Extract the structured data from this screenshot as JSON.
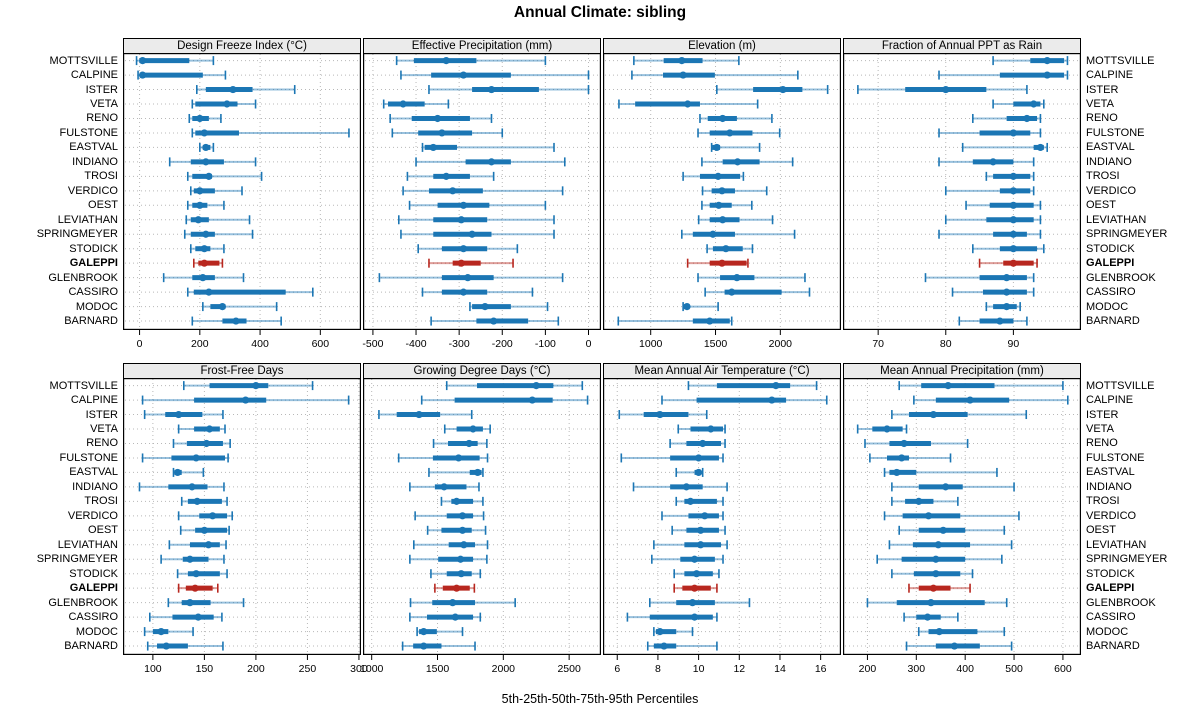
{
  "title": "Annual Climate: sibling",
  "caption": "5th-25th-50th-75th-95th Percentiles",
  "colors": {
    "blue": "#1b76b4",
    "red": "#b8271f",
    "grid": "#b8b8b8",
    "header_bg": "#ebebeb",
    "border": "#000000"
  },
  "stations": [
    "MOTTSVILLE",
    "CALPINE",
    "ISTER",
    "VETA",
    "RENO",
    "FULSTONE",
    "EASTVAL",
    "INDIANO",
    "TROSI",
    "VERDICO",
    "OEST",
    "LEVIATHAN",
    "SPRINGMEYER",
    "STODICK",
    "GALEPPI",
    "GLENBROOK",
    "CASSIRO",
    "MODOC",
    "BARNARD"
  ],
  "highlight_station": "GALEPPI",
  "chart_data": {
    "type": "percentile-dotplot-trellis",
    "percentiles": [
      5,
      25,
      50,
      75,
      95
    ],
    "layout": "2 rows x 4 columns, station labels on both sides, GALEPPI highlighted red",
    "panels": [
      {
        "title": "Design Freeze Index (°C)",
        "xlim": [
          -55,
          735
        ],
        "ticks": [
          0,
          200,
          400,
          600
        ],
        "values": [
          [
            -10,
            0,
            10,
            165,
            245
          ],
          [
            -5,
            0,
            10,
            210,
            285
          ],
          [
            190,
            220,
            310,
            375,
            515
          ],
          [
            175,
            185,
            290,
            325,
            385
          ],
          [
            165,
            175,
            200,
            230,
            270
          ],
          [
            175,
            185,
            215,
            330,
            695
          ],
          [
            200,
            210,
            220,
            235,
            245
          ],
          [
            100,
            170,
            220,
            280,
            385
          ],
          [
            160,
            175,
            230,
            240,
            405
          ],
          [
            170,
            180,
            200,
            250,
            340
          ],
          [
            160,
            175,
            200,
            225,
            280
          ],
          [
            155,
            170,
            195,
            230,
            365
          ],
          [
            150,
            170,
            220,
            250,
            375
          ],
          [
            170,
            185,
            215,
            235,
            280
          ],
          [
            180,
            195,
            215,
            265,
            275
          ],
          [
            80,
            175,
            210,
            250,
            345
          ],
          [
            160,
            180,
            230,
            485,
            575
          ],
          [
            210,
            235,
            275,
            285,
            455
          ],
          [
            175,
            275,
            320,
            355,
            470
          ]
        ]
      },
      {
        "title": "Effective Precipitation (mm)",
        "xlim": [
          -523,
          29
        ],
        "ticks": [
          -500,
          -400,
          -300,
          -200,
          -100,
          0
        ],
        "values": [
          [
            -445,
            -405,
            -330,
            -260,
            -100
          ],
          [
            -435,
            -365,
            -290,
            -180,
            0
          ],
          [
            -370,
            -270,
            -225,
            -115,
            0
          ],
          [
            -475,
            -465,
            -430,
            -380,
            -325
          ],
          [
            -460,
            -410,
            -350,
            -275,
            -225
          ],
          [
            -455,
            -395,
            -340,
            -270,
            -200
          ],
          [
            -385,
            -380,
            -360,
            -305,
            -80
          ],
          [
            -400,
            -285,
            -225,
            -180,
            -55
          ],
          [
            -420,
            -360,
            -330,
            -275,
            -220
          ],
          [
            -430,
            -370,
            -315,
            -245,
            -60
          ],
          [
            -415,
            -350,
            -290,
            -230,
            -100
          ],
          [
            -440,
            -360,
            -295,
            -235,
            -80
          ],
          [
            -435,
            -360,
            -270,
            -225,
            -80
          ],
          [
            -395,
            -340,
            -290,
            -235,
            -165
          ],
          [
            -370,
            -315,
            -295,
            -250,
            -175
          ],
          [
            -485,
            -340,
            -280,
            -220,
            -60
          ],
          [
            -385,
            -340,
            -290,
            -235,
            -130
          ],
          [
            -275,
            -270,
            -240,
            -180,
            -95
          ],
          [
            -365,
            -260,
            -220,
            -140,
            -70
          ]
        ]
      },
      {
        "title": "Elevation (m)",
        "xlim": [
          632,
          2468
        ],
        "ticks": [
          1000,
          1500,
          2000
        ],
        "values": [
          [
            870,
            1100,
            1240,
            1400,
            1680
          ],
          [
            855,
            1095,
            1250,
            1495,
            2135
          ],
          [
            1510,
            1790,
            2020,
            2170,
            2365
          ],
          [
            755,
            880,
            1285,
            1380,
            1825
          ],
          [
            1380,
            1440,
            1555,
            1665,
            1935
          ],
          [
            1365,
            1455,
            1610,
            1785,
            1995
          ],
          [
            1470,
            1475,
            1510,
            1535,
            1840
          ],
          [
            1395,
            1555,
            1670,
            1840,
            2095
          ],
          [
            1250,
            1380,
            1520,
            1690,
            1715
          ],
          [
            1400,
            1470,
            1550,
            1650,
            1895
          ],
          [
            1395,
            1455,
            1525,
            1625,
            1780
          ],
          [
            1370,
            1455,
            1555,
            1685,
            1940
          ],
          [
            1240,
            1325,
            1480,
            1650,
            2110
          ],
          [
            1435,
            1480,
            1580,
            1710,
            1785
          ],
          [
            1285,
            1455,
            1550,
            1740,
            1750
          ],
          [
            1365,
            1535,
            1665,
            1800,
            2190
          ],
          [
            1420,
            1570,
            1625,
            2010,
            2225
          ],
          [
            1250,
            1255,
            1280,
            1300,
            1520
          ],
          [
            750,
            1325,
            1455,
            1610,
            1625
          ]
        ]
      },
      {
        "title": "Fraction of Annual PPT as Rain",
        "xlim": [
          64.8,
          100
        ],
        "ticks": [
          70,
          80,
          90
        ],
        "values": [
          [
            87,
            92.5,
            95,
            97.5,
            98
          ],
          [
            79,
            88,
            95,
            97.5,
            98
          ],
          [
            67,
            74,
            80,
            86,
            92
          ],
          [
            87,
            90,
            93,
            94,
            94.5
          ],
          [
            84,
            89,
            92,
            93.5,
            94
          ],
          [
            79,
            85,
            90,
            92.5,
            94
          ],
          [
            82.5,
            93,
            94,
            94.5,
            95
          ],
          [
            79,
            84,
            87,
            90,
            93
          ],
          [
            86,
            87,
            90,
            92.5,
            93
          ],
          [
            80,
            88,
            90,
            92.5,
            93
          ],
          [
            83,
            86.5,
            90,
            93,
            94
          ],
          [
            80,
            86,
            90,
            93,
            94
          ],
          [
            79,
            87,
            90,
            92,
            94
          ],
          [
            84,
            88,
            90,
            93.5,
            94.5
          ],
          [
            85,
            88.5,
            90,
            93,
            93.5
          ],
          [
            77,
            85,
            89,
            92,
            93
          ],
          [
            81,
            85.5,
            89,
            92,
            93
          ],
          [
            86,
            87,
            89,
            90.5,
            91
          ],
          [
            82,
            85,
            88,
            90,
            92
          ]
        ]
      },
      {
        "title": "Frost-Free Days",
        "xlim": [
          71,
          302
        ],
        "ticks": [
          100,
          150,
          200,
          250,
          300
        ],
        "values": [
          [
            130,
            155,
            200,
            212,
            255
          ],
          [
            90,
            140,
            190,
            210,
            290
          ],
          [
            92,
            112,
            125,
            148,
            168
          ],
          [
            125,
            140,
            155,
            165,
            170
          ],
          [
            120,
            133,
            152,
            168,
            175
          ],
          [
            90,
            118,
            142,
            170,
            173
          ],
          [
            120,
            121,
            124,
            128,
            149
          ],
          [
            87,
            115,
            138,
            153,
            169
          ],
          [
            128,
            134,
            143,
            167,
            172
          ],
          [
            125,
            145,
            158,
            172,
            177
          ],
          [
            127,
            141,
            150,
            172,
            174
          ],
          [
            116,
            136,
            154,
            165,
            171
          ],
          [
            108,
            129,
            136,
            154,
            169
          ],
          [
            124,
            134,
            142,
            165,
            172
          ],
          [
            125,
            132,
            141,
            158,
            163
          ],
          [
            115,
            128,
            136,
            156,
            188
          ],
          [
            97,
            119,
            144,
            159,
            167
          ],
          [
            92,
            100,
            108,
            115,
            139
          ],
          [
            95,
            104,
            113,
            134,
            168
          ]
        ]
      },
      {
        "title": "Growing Degree Days (°C)",
        "xlim": [
          934,
          2742
        ],
        "ticks": [
          1000,
          1500,
          2000,
          2500
        ],
        "values": [
          [
            1570,
            1800,
            2250,
            2380,
            2600
          ],
          [
            1380,
            1630,
            2220,
            2375,
            2640
          ],
          [
            1055,
            1190,
            1360,
            1520,
            1760
          ],
          [
            1555,
            1645,
            1770,
            1845,
            1900
          ],
          [
            1470,
            1580,
            1740,
            1805,
            1875
          ],
          [
            1205,
            1465,
            1660,
            1820,
            1880
          ],
          [
            1435,
            1745,
            1805,
            1835,
            1845
          ],
          [
            1290,
            1480,
            1550,
            1720,
            1815
          ],
          [
            1530,
            1605,
            1645,
            1770,
            1845
          ],
          [
            1330,
            1570,
            1690,
            1770,
            1850
          ],
          [
            1425,
            1530,
            1690,
            1760,
            1865
          ],
          [
            1320,
            1585,
            1700,
            1785,
            1880
          ],
          [
            1290,
            1505,
            1675,
            1770,
            1875
          ],
          [
            1450,
            1570,
            1680,
            1760,
            1825
          ],
          [
            1480,
            1540,
            1645,
            1745,
            1780
          ],
          [
            1295,
            1460,
            1615,
            1785,
            2090
          ],
          [
            1290,
            1420,
            1635,
            1770,
            1825
          ],
          [
            1345,
            1360,
            1395,
            1495,
            1690
          ],
          [
            1235,
            1315,
            1395,
            1530,
            1785
          ]
        ]
      },
      {
        "title": "Mean Annual Air Temperature (°C)",
        "xlim": [
          5.3,
          17.0
        ],
        "ticks": [
          6,
          8,
          10,
          12,
          14,
          16
        ],
        "values": [
          [
            9.5,
            10.9,
            13.8,
            14.5,
            15.8
          ],
          [
            8.2,
            9.9,
            13.6,
            14.3,
            16.3
          ],
          [
            6.1,
            7.3,
            8.1,
            9.5,
            10.4
          ],
          [
            9.0,
            9.6,
            10.6,
            11.2,
            11.3
          ],
          [
            8.6,
            9.4,
            10.2,
            11.1,
            11.3
          ],
          [
            6.2,
            8.6,
            10.0,
            11.0,
            11.2
          ],
          [
            8.9,
            9.8,
            10.0,
            10.1,
            10.2
          ],
          [
            6.8,
            8.6,
            9.4,
            10.2,
            11.4
          ],
          [
            8.9,
            9.3,
            9.6,
            10.9,
            11.2
          ],
          [
            8.2,
            9.5,
            10.3,
            11.0,
            11.2
          ],
          [
            8.7,
            9.4,
            10.1,
            11.0,
            11.3
          ],
          [
            7.8,
            9.3,
            10.1,
            11.1,
            11.4
          ],
          [
            7.7,
            9.1,
            9.8,
            10.8,
            11.2
          ],
          [
            8.8,
            9.3,
            9.9,
            10.7,
            11.0
          ],
          [
            8.8,
            9.2,
            9.8,
            10.6,
            10.9
          ],
          [
            7.6,
            8.9,
            9.7,
            10.8,
            12.5
          ],
          [
            6.5,
            7.6,
            9.8,
            10.7,
            10.9
          ],
          [
            7.8,
            7.9,
            8.1,
            8.9,
            9.7
          ],
          [
            7.5,
            7.8,
            8.3,
            8.9,
            10.9
          ]
        ]
      },
      {
        "title": "Mean Annual Precipitation (mm)",
        "xlim": [
          150,
          637
        ],
        "ticks": [
          200,
          300,
          400,
          500,
          600
        ],
        "values": [
          [
            265,
            310,
            365,
            460,
            600
          ],
          [
            295,
            340,
            410,
            490,
            610
          ],
          [
            250,
            285,
            335,
            405,
            525
          ],
          [
            180,
            210,
            240,
            272,
            280
          ],
          [
            195,
            245,
            275,
            330,
            405
          ],
          [
            205,
            240,
            270,
            285,
            370
          ],
          [
            235,
            245,
            260,
            300,
            465
          ],
          [
            250,
            305,
            360,
            395,
            500
          ],
          [
            250,
            277,
            305,
            335,
            385
          ],
          [
            235,
            272,
            325,
            390,
            510
          ],
          [
            265,
            305,
            355,
            400,
            480
          ],
          [
            245,
            293,
            345,
            410,
            495
          ],
          [
            220,
            270,
            340,
            400,
            475
          ],
          [
            250,
            295,
            340,
            390,
            415
          ],
          [
            285,
            305,
            335,
            370,
            410
          ],
          [
            200,
            260,
            330,
            440,
            485
          ],
          [
            275,
            300,
            323,
            350,
            385
          ],
          [
            305,
            325,
            347,
            425,
            480
          ],
          [
            280,
            340,
            378,
            430,
            495
          ]
        ]
      }
    ]
  }
}
